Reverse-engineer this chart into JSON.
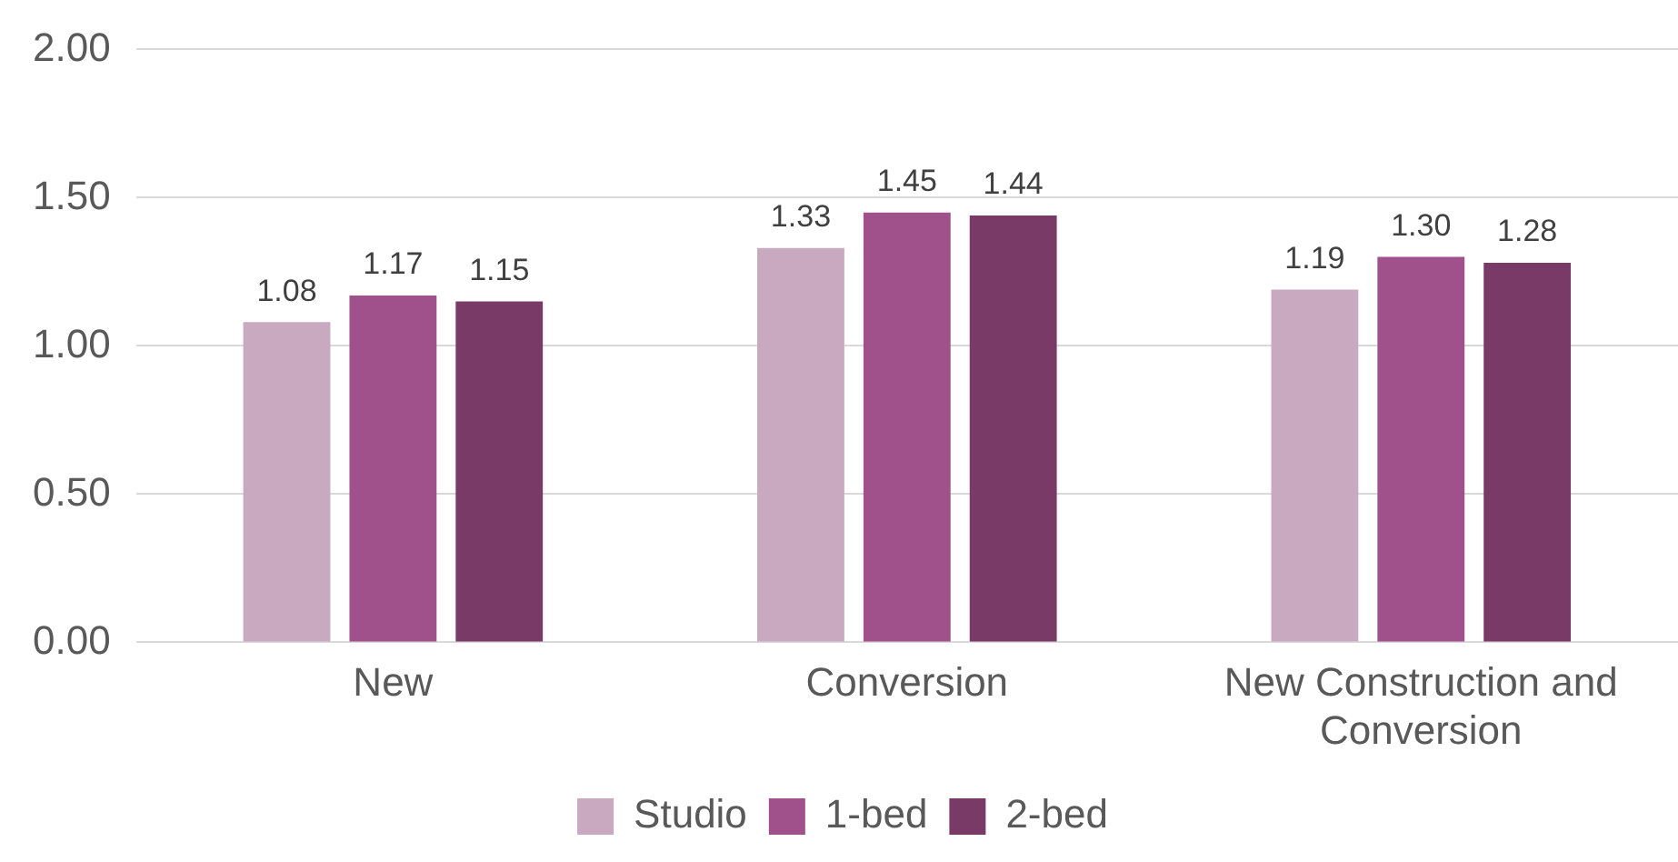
{
  "chart_data": {
    "type": "bar",
    "categories": [
      "New",
      "Conversion",
      "New Construction and Conversion"
    ],
    "series": [
      {
        "name": "Studio",
        "color": "#c9a9bf",
        "values": [
          1.08,
          1.33,
          1.19
        ],
        "value_labels": [
          "1.08",
          "1.33",
          "1.19"
        ]
      },
      {
        "name": "1-bed",
        "color": "#a0508a",
        "values": [
          1.17,
          1.45,
          1.3
        ],
        "value_labels": [
          "1.17",
          "1.45",
          "1.30"
        ]
      },
      {
        "name": "2-bed",
        "color": "#7a3a68",
        "values": [
          1.15,
          1.44,
          1.28
        ],
        "value_labels": [
          "1.15",
          "1.44",
          "1.28"
        ]
      }
    ],
    "ylim": [
      0,
      2
    ],
    "yticks": [
      {
        "value": 0,
        "label": "0.00"
      },
      {
        "value": 0.5,
        "label": "0.50"
      },
      {
        "value": 1,
        "label": "1.00"
      },
      {
        "value": 1.5,
        "label": "1.50"
      },
      {
        "value": 2,
        "label": "2.00"
      }
    ],
    "grid": "y",
    "legend": "bottom"
  }
}
